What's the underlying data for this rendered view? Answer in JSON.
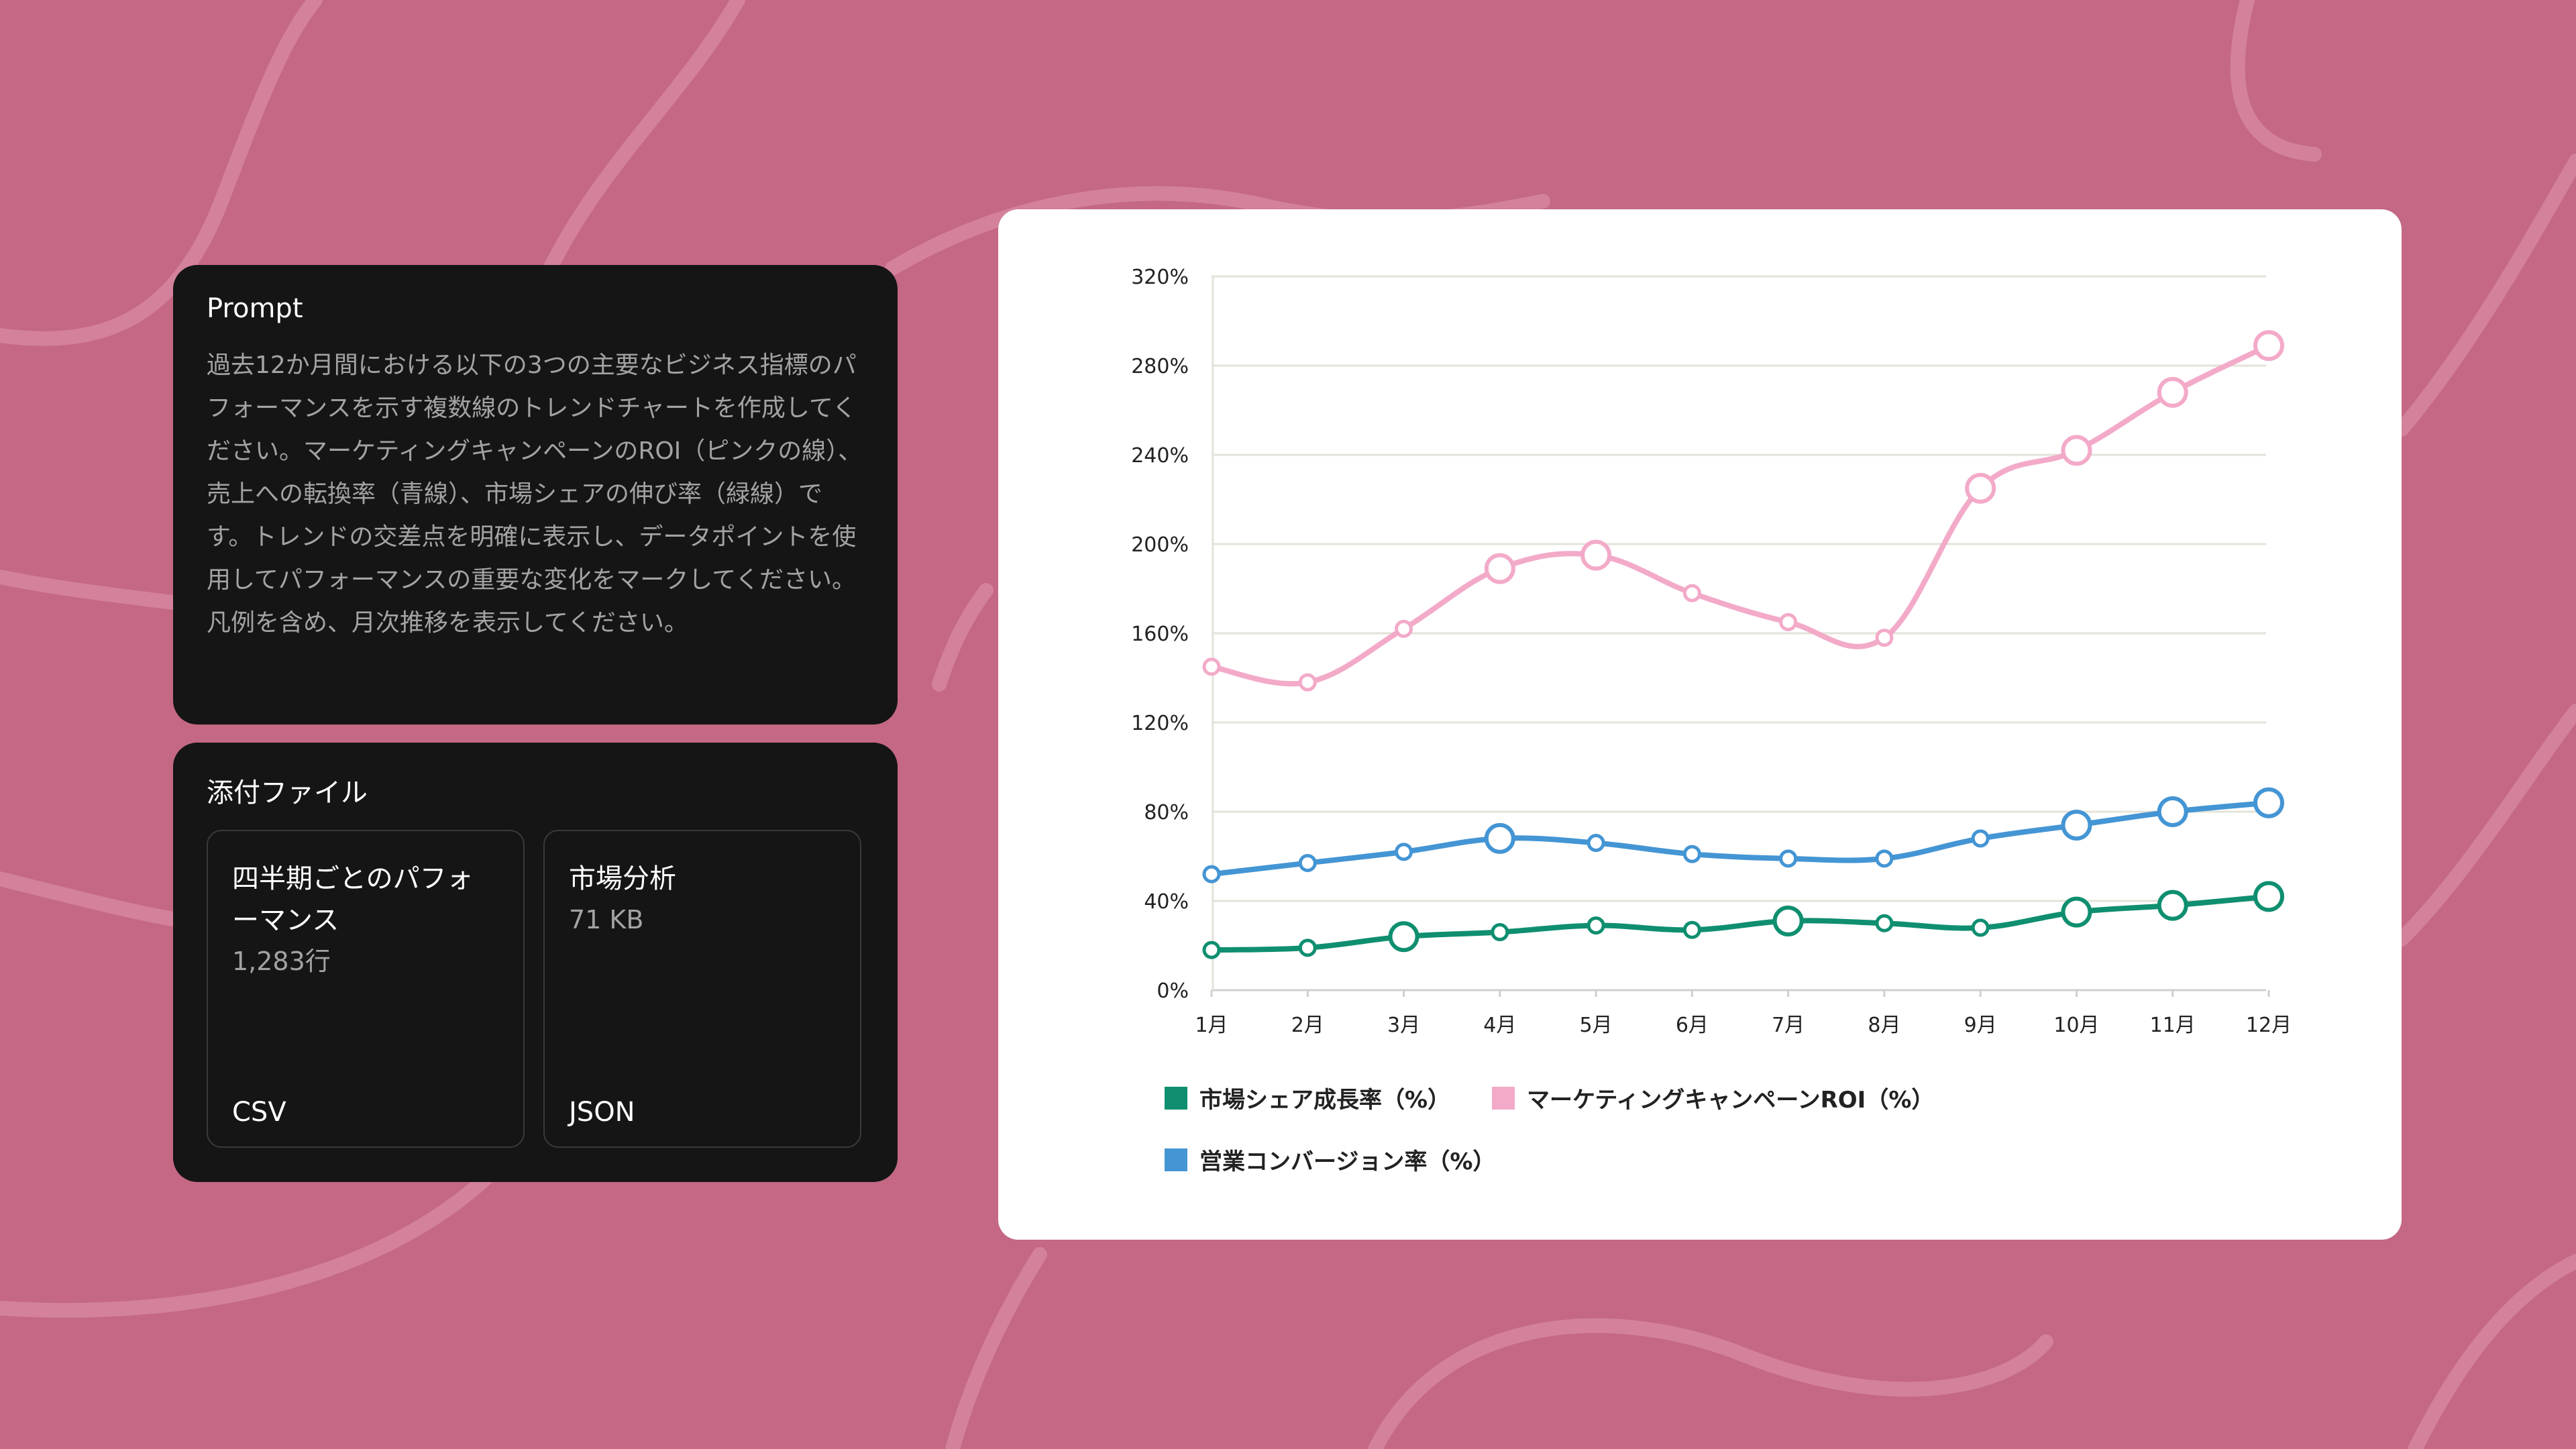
{
  "colors": {
    "background": "#c46884",
    "card": "#151515",
    "green": "#0f8f70",
    "pink": "#f3aac9",
    "blue": "#4495d4"
  },
  "prompt": {
    "title": "Prompt",
    "text": "過去12か月間における以下の3つの主要なビジネス指標のパフォーマンスを示す複数線のトレンドチャートを作成してください。マーケティングキャンペーンのROI（ピンクの線）、売上への転換率（青線）、市場シェアの伸び率（緑線）です。トレンドの交差点を明確に表示し、データポイントを使用してパフォーマンスの重要な変化をマークしてください。凡例を含め、月次推移を表示してください。"
  },
  "attachments": {
    "title": "添付ファイル",
    "files": [
      {
        "name": "四半期ごとのパフォーマンス",
        "meta": "1,283行",
        "type": "CSV"
      },
      {
        "name": "市場分析",
        "meta": "71 KB",
        "type": "JSON"
      }
    ]
  },
  "chart_data": {
    "type": "line",
    "categories": [
      "1月",
      "2月",
      "3月",
      "4月",
      "5月",
      "6月",
      "7月",
      "8月",
      "9月",
      "10月",
      "11月",
      "12月"
    ],
    "ylim": [
      0,
      320
    ],
    "yticks": [
      0,
      40,
      80,
      120,
      160,
      200,
      240,
      280,
      320
    ],
    "ytick_labels": [
      "0%",
      "40%",
      "80%",
      "120%",
      "160%",
      "200%",
      "240%",
      "280%",
      "320%"
    ],
    "grid": true,
    "legend_position": "bottom-left",
    "series": [
      {
        "name": "市場シェア成長率（%）",
        "color": "#0f8f70",
        "values": [
          18,
          19,
          24,
          26,
          29,
          27,
          31,
          30,
          28,
          35,
          38,
          42
        ],
        "highlighted": [
          false,
          false,
          true,
          false,
          false,
          false,
          true,
          false,
          false,
          true,
          true,
          true
        ]
      },
      {
        "name": "マーケティングキャンペーンROI（%）",
        "color": "#f3aac9",
        "values": [
          145,
          138,
          162,
          189,
          195,
          178,
          165,
          158,
          225,
          242,
          268,
          289
        ],
        "highlighted": [
          false,
          false,
          false,
          true,
          true,
          false,
          false,
          false,
          true,
          true,
          true,
          true
        ]
      },
      {
        "name": "営業コンバージョン率（%）",
        "color": "#4495d4",
        "values": [
          52,
          57,
          62,
          68,
          66,
          61,
          59,
          59,
          68,
          74,
          80,
          84
        ],
        "highlighted": [
          false,
          false,
          false,
          true,
          false,
          false,
          false,
          false,
          false,
          true,
          true,
          true
        ]
      }
    ]
  }
}
